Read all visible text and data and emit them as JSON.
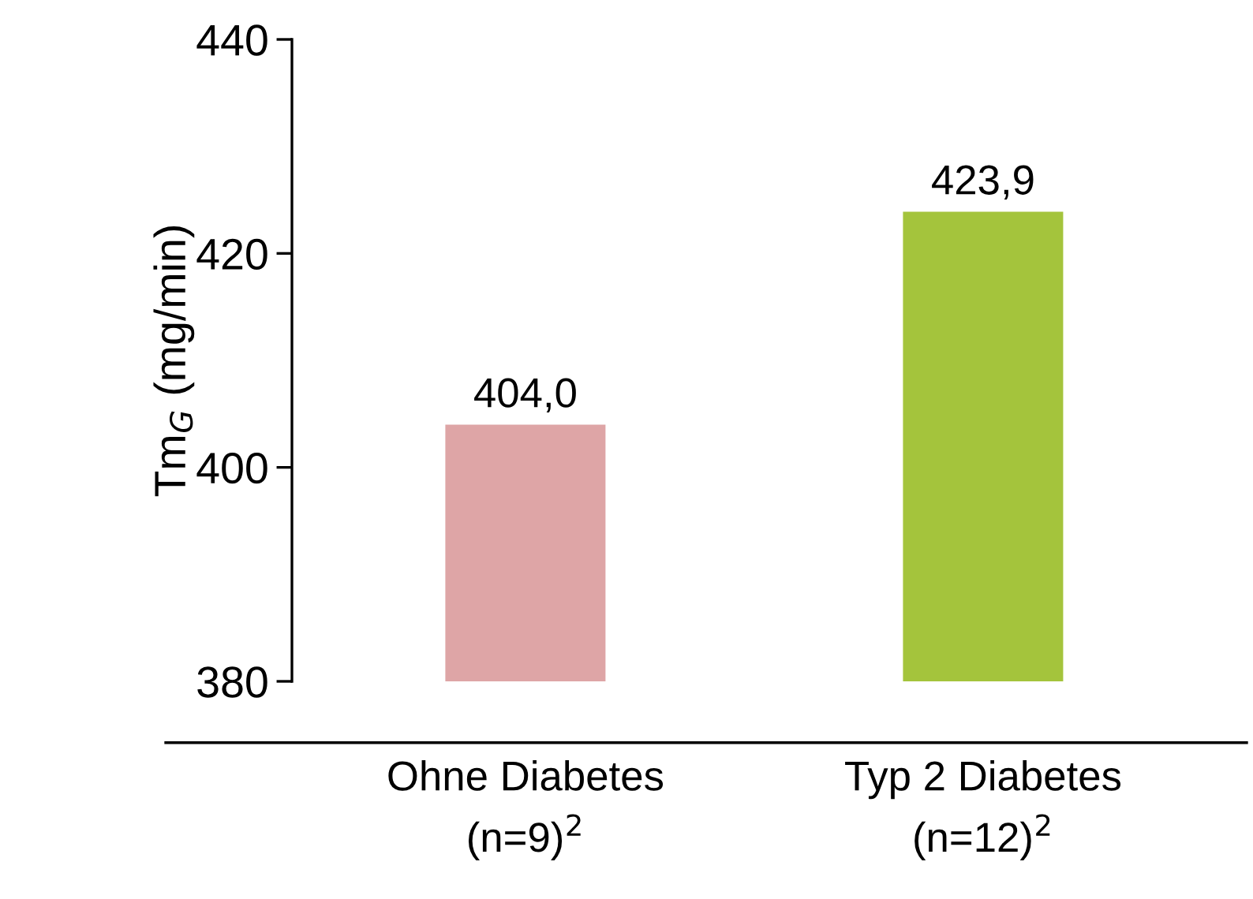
{
  "chart_data": {
    "type": "bar",
    "categories": [
      "Ohne Diabetes\n(n=9)$^{2}$",
      "Typ 2 Diabetes\n(n=12)$^{2}$"
    ],
    "values": [
      404.0,
      423.9
    ],
    "colors": [
      "#dea5a6",
      "#a4c43c"
    ],
    "value_labels": [
      "404,0",
      "423,9"
    ],
    "ylabel": "Tm$_{G}$ (mg/min)",
    "ylim": [
      380,
      440
    ],
    "yticks": [
      380,
      400,
      420,
      440
    ],
    "grid": false,
    "legend": false
  }
}
